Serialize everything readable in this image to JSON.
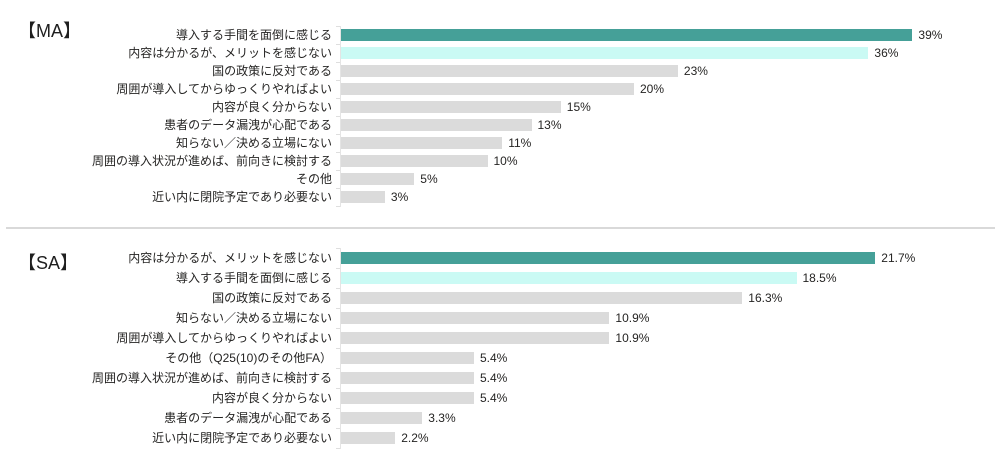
{
  "palette": {
    "background": "#FFFFFF",
    "bar_rank1": "#45A098",
    "bar_rank2": "#CAFAF4",
    "bar_default": "#DBDBDB",
    "axis_line": "#E4E4E4",
    "tick": "#DEDEDE",
    "divider": "#D9D9D9",
    "label_text": "#252423",
    "value_text": "#252423",
    "title_text": "#1F1F1F"
  },
  "chart_data": [
    {
      "type": "bar",
      "orientation": "horizontal",
      "title": "【MA】",
      "unit": "%",
      "grid": false,
      "legend": "none",
      "value_labels": "end-of-bar",
      "xlim": [
        0,
        40
      ],
      "categories": [
        "導入する手間を面倒に感じる",
        "内容は分かるが、メリットを感じない",
        "国の政策に反対である",
        "周囲が導入してからゆっくりやればよい",
        "内容が良く分からない",
        "患者のデータ漏洩が心配である",
        "知らない／決める立場にない",
        "周囲の導入状況が進めば、前向きに検討する",
        "その他",
        "近い内に閉院予定であり必要ない"
      ],
      "values": [
        39,
        36,
        23,
        20,
        15,
        13,
        11,
        10,
        5,
        3
      ],
      "labels": [
        "39%",
        "36%",
        "23%",
        "20%",
        "15%",
        "13%",
        "11%",
        "10%",
        "5%",
        "3%"
      ]
    },
    {
      "type": "bar",
      "orientation": "horizontal",
      "title": "【SA】",
      "unit": "%",
      "grid": false,
      "legend": "none",
      "value_labels": "end-of-bar",
      "xlim": [
        0,
        23.8
      ],
      "categories": [
        "内容は分かるが、メリットを感じない",
        "導入する手間を面倒に感じる",
        "国の政策に反対である",
        "知らない／決める立場にない",
        "周囲が導入してからゆっくりやればよい",
        "その他（Q25(10)のその他FA）",
        "周囲の導入状況が進めば、前向きに検討する",
        "内容が良く分からない",
        "患者のデータ漏洩が心配である",
        "近い内に閉院予定であり必要ない"
      ],
      "values": [
        21.7,
        18.5,
        16.3,
        10.9,
        10.9,
        5.4,
        5.4,
        5.4,
        3.3,
        2.2
      ],
      "labels": [
        "21.7%",
        "18.5%",
        "16.3%",
        "10.9%",
        "10.9%",
        "5.4%",
        "5.4%",
        "5.4%",
        "3.3%",
        "2.2%"
      ]
    }
  ]
}
